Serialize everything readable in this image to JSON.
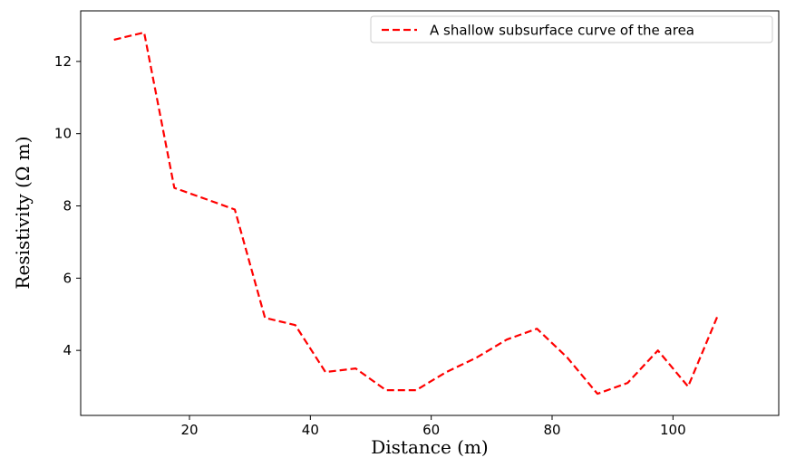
{
  "chart_data": {
    "type": "line",
    "title": "",
    "xlabel": "Distance (m)",
    "ylabel": "Resistivity (Ω m)",
    "xlim": [
      2,
      117.5
    ],
    "ylim": [
      2.2,
      13.4
    ],
    "x_ticks": [
      20,
      40,
      60,
      80,
      100
    ],
    "y_ticks": [
      4,
      6,
      8,
      10,
      12
    ],
    "grid": false,
    "legend_position": "top-right",
    "series": [
      {
        "name": "A shallow subsurface curve of the area",
        "color": "#ff0000",
        "line_style": "dashed",
        "x": [
          7.5,
          12.5,
          17.5,
          22.5,
          27.5,
          32.5,
          37.5,
          42.5,
          47.5,
          52.5,
          57.5,
          62.5,
          67.5,
          72.5,
          77.5,
          82.5,
          87.5,
          92.5,
          97.5,
          102.5,
          107.5
        ],
        "y": [
          12.6,
          12.8,
          8.5,
          8.2,
          7.9,
          4.9,
          4.7,
          3.4,
          3.5,
          2.9,
          2.9,
          3.4,
          3.8,
          4.3,
          4.6,
          3.8,
          2.8,
          3.1,
          4.0,
          3.0,
          5.0
        ]
      }
    ]
  }
}
